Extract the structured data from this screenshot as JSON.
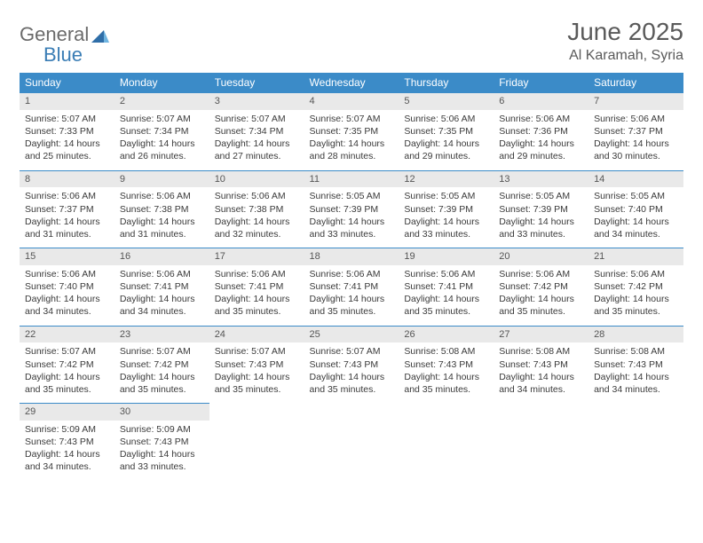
{
  "logo": {
    "text1": "General",
    "text2": "Blue"
  },
  "title": "June 2025",
  "location": "Al Karamah, Syria",
  "colors": {
    "header_bg": "#3b8bc8",
    "header_text": "#ffffff",
    "daynum_bg": "#e9e9e9",
    "daynum_border": "#3b8bc8",
    "body_text": "#3a3a3a",
    "title_text": "#5a5a5a"
  },
  "weekdays": [
    "Sunday",
    "Monday",
    "Tuesday",
    "Wednesday",
    "Thursday",
    "Friday",
    "Saturday"
  ],
  "weeks": [
    [
      {
        "n": "1",
        "sr": "5:07 AM",
        "ss": "7:33 PM",
        "dl": "14 hours and 25 minutes."
      },
      {
        "n": "2",
        "sr": "5:07 AM",
        "ss": "7:34 PM",
        "dl": "14 hours and 26 minutes."
      },
      {
        "n": "3",
        "sr": "5:07 AM",
        "ss": "7:34 PM",
        "dl": "14 hours and 27 minutes."
      },
      {
        "n": "4",
        "sr": "5:07 AM",
        "ss": "7:35 PM",
        "dl": "14 hours and 28 minutes."
      },
      {
        "n": "5",
        "sr": "5:06 AM",
        "ss": "7:35 PM",
        "dl": "14 hours and 29 minutes."
      },
      {
        "n": "6",
        "sr": "5:06 AM",
        "ss": "7:36 PM",
        "dl": "14 hours and 29 minutes."
      },
      {
        "n": "7",
        "sr": "5:06 AM",
        "ss": "7:37 PM",
        "dl": "14 hours and 30 minutes."
      }
    ],
    [
      {
        "n": "8",
        "sr": "5:06 AM",
        "ss": "7:37 PM",
        "dl": "14 hours and 31 minutes."
      },
      {
        "n": "9",
        "sr": "5:06 AM",
        "ss": "7:38 PM",
        "dl": "14 hours and 31 minutes."
      },
      {
        "n": "10",
        "sr": "5:06 AM",
        "ss": "7:38 PM",
        "dl": "14 hours and 32 minutes."
      },
      {
        "n": "11",
        "sr": "5:05 AM",
        "ss": "7:39 PM",
        "dl": "14 hours and 33 minutes."
      },
      {
        "n": "12",
        "sr": "5:05 AM",
        "ss": "7:39 PM",
        "dl": "14 hours and 33 minutes."
      },
      {
        "n": "13",
        "sr": "5:05 AM",
        "ss": "7:39 PM",
        "dl": "14 hours and 33 minutes."
      },
      {
        "n": "14",
        "sr": "5:05 AM",
        "ss": "7:40 PM",
        "dl": "14 hours and 34 minutes."
      }
    ],
    [
      {
        "n": "15",
        "sr": "5:06 AM",
        "ss": "7:40 PM",
        "dl": "14 hours and 34 minutes."
      },
      {
        "n": "16",
        "sr": "5:06 AM",
        "ss": "7:41 PM",
        "dl": "14 hours and 34 minutes."
      },
      {
        "n": "17",
        "sr": "5:06 AM",
        "ss": "7:41 PM",
        "dl": "14 hours and 35 minutes."
      },
      {
        "n": "18",
        "sr": "5:06 AM",
        "ss": "7:41 PM",
        "dl": "14 hours and 35 minutes."
      },
      {
        "n": "19",
        "sr": "5:06 AM",
        "ss": "7:41 PM",
        "dl": "14 hours and 35 minutes."
      },
      {
        "n": "20",
        "sr": "5:06 AM",
        "ss": "7:42 PM",
        "dl": "14 hours and 35 minutes."
      },
      {
        "n": "21",
        "sr": "5:06 AM",
        "ss": "7:42 PM",
        "dl": "14 hours and 35 minutes."
      }
    ],
    [
      {
        "n": "22",
        "sr": "5:07 AM",
        "ss": "7:42 PM",
        "dl": "14 hours and 35 minutes."
      },
      {
        "n": "23",
        "sr": "5:07 AM",
        "ss": "7:42 PM",
        "dl": "14 hours and 35 minutes."
      },
      {
        "n": "24",
        "sr": "5:07 AM",
        "ss": "7:43 PM",
        "dl": "14 hours and 35 minutes."
      },
      {
        "n": "25",
        "sr": "5:07 AM",
        "ss": "7:43 PM",
        "dl": "14 hours and 35 minutes."
      },
      {
        "n": "26",
        "sr": "5:08 AM",
        "ss": "7:43 PM",
        "dl": "14 hours and 35 minutes."
      },
      {
        "n": "27",
        "sr": "5:08 AM",
        "ss": "7:43 PM",
        "dl": "14 hours and 34 minutes."
      },
      {
        "n": "28",
        "sr": "5:08 AM",
        "ss": "7:43 PM",
        "dl": "14 hours and 34 minutes."
      }
    ],
    [
      {
        "n": "29",
        "sr": "5:09 AM",
        "ss": "7:43 PM",
        "dl": "14 hours and 34 minutes."
      },
      {
        "n": "30",
        "sr": "5:09 AM",
        "ss": "7:43 PM",
        "dl": "14 hours and 33 minutes."
      },
      null,
      null,
      null,
      null,
      null
    ]
  ],
  "labels": {
    "sunrise": "Sunrise: ",
    "sunset": "Sunset: ",
    "daylight": "Daylight: "
  }
}
